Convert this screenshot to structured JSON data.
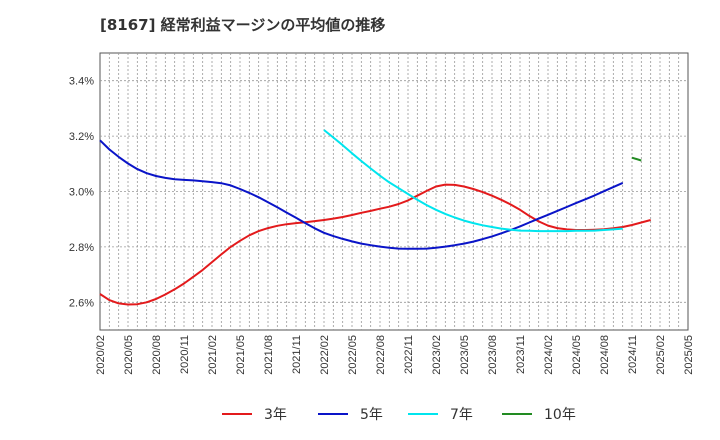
{
  "chart_data": {
    "type": "line",
    "title": "[8167]  経常利益マージンの平均値の推移",
    "xlabel": "",
    "ylabel": "",
    "ylim": [
      0.025,
      0.035
    ],
    "y_ticks": [
      0.026,
      0.028,
      0.03,
      0.032,
      0.034
    ],
    "y_tick_labels": [
      "2.6%",
      "2.8%",
      "3.0%",
      "3.2%",
      "3.4%"
    ],
    "x_ticks": [
      "2020/02",
      "2020/05",
      "2020/08",
      "2020/11",
      "2021/02",
      "2021/05",
      "2021/08",
      "2021/11",
      "2022/02",
      "2022/05",
      "2022/08",
      "2022/11",
      "2023/02",
      "2023/05",
      "2023/08",
      "2023/11",
      "2024/02",
      "2024/05",
      "2024/08",
      "2024/11",
      "2025/02",
      "2025/05"
    ],
    "grid": true,
    "legend_position": "bottom",
    "series": [
      {
        "name": "3年",
        "color": "#e31a1c",
        "points": [
          [
            "2020/02",
            0.0263
          ],
          [
            "2020/03",
            0.02608
          ],
          [
            "2020/04",
            0.02596
          ],
          [
            "2020/05",
            0.02592
          ],
          [
            "2020/06",
            0.02593
          ],
          [
            "2020/07",
            0.026
          ],
          [
            "2020/08",
            0.02612
          ],
          [
            "2020/09",
            0.02628
          ],
          [
            "2020/10",
            0.02647
          ],
          [
            "2020/11",
            0.02668
          ],
          [
            "2020/12",
            0.02692
          ],
          [
            "2021/01",
            0.02717
          ],
          [
            "2021/02",
            0.02745
          ],
          [
            "2021/03",
            0.02773
          ],
          [
            "2021/04",
            0.028
          ],
          [
            "2021/05",
            0.02822
          ],
          [
            "2021/06",
            0.02842
          ],
          [
            "2021/07",
            0.02857
          ],
          [
            "2021/08",
            0.02868
          ],
          [
            "2021/09",
            0.02876
          ],
          [
            "2021/10",
            0.02882
          ],
          [
            "2021/11",
            0.02886
          ],
          [
            "2021/12",
            0.02889
          ],
          [
            "2022/01",
            0.02893
          ],
          [
            "2022/02",
            0.02897
          ],
          [
            "2022/03",
            0.02902
          ],
          [
            "2022/04",
            0.02908
          ],
          [
            "2022/05",
            0.02915
          ],
          [
            "2022/06",
            0.02923
          ],
          [
            "2022/07",
            0.0293
          ],
          [
            "2022/08",
            0.02938
          ],
          [
            "2022/09",
            0.02945
          ],
          [
            "2022/10",
            0.02955
          ],
          [
            "2022/11",
            0.02968
          ],
          [
            "2022/12",
            0.02985
          ],
          [
            "2023/01",
            0.03002
          ],
          [
            "2023/02",
            0.03018
          ],
          [
            "2023/03",
            0.03025
          ],
          [
            "2023/04",
            0.03024
          ],
          [
            "2023/05",
            0.03018
          ],
          [
            "2023/06",
            0.03009
          ],
          [
            "2023/07",
            0.02998
          ],
          [
            "2023/08",
            0.02985
          ],
          [
            "2023/09",
            0.0297
          ],
          [
            "2023/10",
            0.02953
          ],
          [
            "2023/11",
            0.02934
          ],
          [
            "2023/12",
            0.02912
          ],
          [
            "2024/01",
            0.02892
          ],
          [
            "2024/02",
            0.02877
          ],
          [
            "2024/03",
            0.02868
          ],
          [
            "2024/04",
            0.02863
          ],
          [
            "2024/05",
            0.02861
          ],
          [
            "2024/06",
            0.02861
          ],
          [
            "2024/07",
            0.02862
          ],
          [
            "2024/08",
            0.02864
          ],
          [
            "2024/09",
            0.02867
          ],
          [
            "2024/10",
            0.02872
          ],
          [
            "2024/11",
            0.02879
          ],
          [
            "2024/12",
            0.02888
          ],
          [
            "2025/01",
            0.02897
          ]
        ]
      },
      {
        "name": "5年",
        "color": "#0a14c8",
        "points": [
          [
            "2020/02",
            0.03185
          ],
          [
            "2020/03",
            0.03152
          ],
          [
            "2020/04",
            0.03125
          ],
          [
            "2020/05",
            0.03101
          ],
          [
            "2020/06",
            0.03081
          ],
          [
            "2020/07",
            0.03066
          ],
          [
            "2020/08",
            0.03056
          ],
          [
            "2020/09",
            0.03049
          ],
          [
            "2020/10",
            0.03044
          ],
          [
            "2020/11",
            0.03042
          ],
          [
            "2020/12",
            0.0304
          ],
          [
            "2021/01",
            0.03037
          ],
          [
            "2021/02",
            0.03034
          ],
          [
            "2021/03",
            0.0303
          ],
          [
            "2021/04",
            0.03022
          ],
          [
            "2021/05",
            0.03009
          ],
          [
            "2021/06",
            0.02995
          ],
          [
            "2021/07",
            0.02979
          ],
          [
            "2021/08",
            0.02961
          ],
          [
            "2021/09",
            0.02943
          ],
          [
            "2021/10",
            0.02924
          ],
          [
            "2021/11",
            0.02905
          ],
          [
            "2021/12",
            0.02886
          ],
          [
            "2022/01",
            0.02867
          ],
          [
            "2022/02",
            0.02851
          ],
          [
            "2022/03",
            0.02839
          ],
          [
            "2022/04",
            0.02829
          ],
          [
            "2022/05",
            0.0282
          ],
          [
            "2022/06",
            0.02812
          ],
          [
            "2022/07",
            0.02806
          ],
          [
            "2022/08",
            0.02801
          ],
          [
            "2022/09",
            0.02797
          ],
          [
            "2022/10",
            0.02794
          ],
          [
            "2022/11",
            0.02793
          ],
          [
            "2022/12",
            0.02793
          ],
          [
            "2023/01",
            0.02794
          ],
          [
            "2023/02",
            0.02797
          ],
          [
            "2023/03",
            0.02801
          ],
          [
            "2023/04",
            0.02806
          ],
          [
            "2023/05",
            0.02812
          ],
          [
            "2023/06",
            0.02819
          ],
          [
            "2023/07",
            0.02828
          ],
          [
            "2023/08",
            0.02838
          ],
          [
            "2023/09",
            0.02849
          ],
          [
            "2023/10",
            0.02861
          ],
          [
            "2023/11",
            0.02874
          ],
          [
            "2023/12",
            0.02888
          ],
          [
            "2024/01",
            0.02902
          ],
          [
            "2024/02",
            0.02916
          ],
          [
            "2024/03",
            0.0293
          ],
          [
            "2024/04",
            0.02944
          ],
          [
            "2024/05",
            0.02958
          ],
          [
            "2024/06",
            0.02972
          ],
          [
            "2024/07",
            0.02986
          ],
          [
            "2024/08",
            0.03001
          ],
          [
            "2024/09",
            0.03016
          ],
          [
            "2024/10",
            0.03031
          ]
        ]
      },
      {
        "name": "7年",
        "color": "#00e5ee",
        "points": [
          [
            "2022/02",
            0.03222
          ],
          [
            "2022/03",
            0.03195
          ],
          [
            "2022/04",
            0.03167
          ],
          [
            "2022/05",
            0.03138
          ],
          [
            "2022/06",
            0.0311
          ],
          [
            "2022/07",
            0.03083
          ],
          [
            "2022/08",
            0.03057
          ],
          [
            "2022/09",
            0.03033
          ],
          [
            "2022/10",
            0.03012
          ],
          [
            "2022/11",
            0.02991
          ],
          [
            "2022/12",
            0.0297
          ],
          [
            "2023/01",
            0.02951
          ],
          [
            "2023/02",
            0.02934
          ],
          [
            "2023/03",
            0.02919
          ],
          [
            "2023/04",
            0.02906
          ],
          [
            "2023/05",
            0.02895
          ],
          [
            "2023/06",
            0.02886
          ],
          [
            "2023/07",
            0.02878
          ],
          [
            "2023/08",
            0.02872
          ],
          [
            "2023/09",
            0.02866
          ],
          [
            "2023/10",
            0.02862
          ],
          [
            "2023/11",
            0.02859
          ],
          [
            "2023/12",
            0.02858
          ],
          [
            "2024/01",
            0.02857
          ],
          [
            "2024/02",
            0.02857
          ],
          [
            "2024/03",
            0.02857
          ],
          [
            "2024/04",
            0.02857
          ],
          [
            "2024/05",
            0.02858
          ],
          [
            "2024/06",
            0.02858
          ],
          [
            "2024/07",
            0.02859
          ],
          [
            "2024/08",
            0.02861
          ],
          [
            "2024/09",
            0.02863
          ],
          [
            "2024/10",
            0.02866
          ]
        ]
      },
      {
        "name": "10年",
        "color": "#228b22",
        "points": [
          [
            "2024/11",
            0.03122
          ],
          [
            "2024/12",
            0.03112
          ]
        ]
      }
    ]
  }
}
